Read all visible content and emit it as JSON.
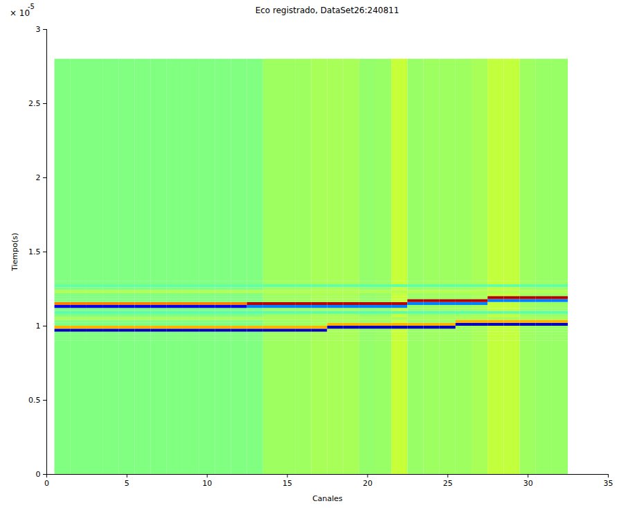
{
  "chart_data": {
    "type": "heatmap",
    "title": "Eco registrado, DataSet26:240811",
    "x_label": "Canales",
    "y_label": "Tiempo(s)",
    "y_multiplier": {
      "base": "× 10",
      "exponent": "-5"
    },
    "xlim": [
      0,
      35
    ],
    "xticks": [
      0,
      5,
      10,
      15,
      20,
      25,
      30,
      35
    ],
    "ylim": [
      0,
      3
    ],
    "yticks": [
      0,
      0.5,
      1,
      1.5,
      2,
      2.5,
      3
    ],
    "grid": false,
    "color_range": [
      -1,
      1
    ],
    "x": [
      1,
      2,
      3,
      4,
      5,
      6,
      7,
      8,
      9,
      10,
      11,
      12,
      13,
      14,
      15,
      16,
      17,
      18,
      19,
      20,
      21,
      22,
      23,
      24,
      25,
      26,
      27,
      28,
      29,
      30,
      31,
      32
    ],
    "y_edges": [
      0,
      0.9,
      0.92,
      0.94,
      0.96,
      0.98,
      1.0,
      1.02,
      1.04,
      1.06,
      1.08,
      1.1,
      1.12,
      1.14,
      1.16,
      1.18,
      1.2,
      1.22,
      1.24,
      1.26,
      1.28,
      1.3,
      2.8
    ],
    "cells": [
      [
        0,
        0,
        0,
        0,
        -0.9,
        0.4,
        0,
        0,
        0.08,
        0,
        -0.08,
        0,
        -0.8,
        0.5,
        0,
        0,
        0,
        0.1,
        0,
        -0.06,
        0,
        0
      ],
      [
        0,
        0,
        0,
        0,
        -0.9,
        0.4,
        0,
        0,
        0.08,
        0,
        -0.08,
        0,
        -0.8,
        0.5,
        0,
        0,
        0,
        0.1,
        0,
        -0.06,
        0,
        0
      ],
      [
        0,
        0,
        0,
        0,
        -0.9,
        0.4,
        0,
        0,
        0.08,
        0,
        -0.08,
        0,
        -0.8,
        0.5,
        0,
        0,
        0,
        0.1,
        0,
        -0.06,
        0,
        0
      ],
      [
        0,
        0,
        0,
        0,
        -0.9,
        0.4,
        0,
        0,
        0.08,
        0,
        -0.08,
        0,
        -0.8,
        0.5,
        0,
        0,
        0,
        0.1,
        0,
        -0.06,
        0,
        0
      ],
      [
        0,
        0,
        0,
        0,
        -0.9,
        0.4,
        0,
        0,
        0.08,
        0,
        -0.08,
        0,
        -0.8,
        0.5,
        0,
        0,
        0,
        0.1,
        0,
        -0.06,
        0,
        0
      ],
      [
        0,
        0,
        0,
        0,
        -0.9,
        0.4,
        0,
        0,
        0.08,
        0,
        -0.08,
        0,
        -0.8,
        0.5,
        0,
        0,
        0,
        0.1,
        0,
        -0.06,
        0,
        0
      ],
      [
        0,
        0,
        0,
        0,
        -0.9,
        0.4,
        0,
        0,
        0.08,
        0,
        -0.08,
        0,
        -0.8,
        0.5,
        0,
        0,
        0,
        0.1,
        0,
        -0.06,
        0,
        0
      ],
      [
        0,
        0,
        0,
        0,
        -0.9,
        0.4,
        0,
        0,
        0.08,
        0,
        -0.08,
        0,
        -0.8,
        0.5,
        0,
        0,
        0,
        0.1,
        0,
        -0.06,
        0,
        0
      ],
      [
        0,
        0,
        0,
        0,
        -0.9,
        0.4,
        0,
        0,
        0.08,
        0,
        -0.08,
        0,
        -0.8,
        0.5,
        0,
        0,
        0,
        0.1,
        0,
        -0.06,
        0,
        0
      ],
      [
        0,
        0,
        0,
        0,
        -0.9,
        0.4,
        0,
        0,
        0.08,
        0,
        -0.08,
        0,
        -0.8,
        0.5,
        0,
        0,
        0,
        0.1,
        0,
        -0.06,
        0,
        0
      ],
      [
        0,
        0,
        0,
        0,
        -0.9,
        0.4,
        0,
        0,
        0.08,
        0,
        -0.08,
        0,
        -0.8,
        0.5,
        0,
        0,
        0,
        0.1,
        0,
        -0.06,
        0,
        0
      ],
      [
        0,
        0,
        0,
        0,
        -0.9,
        0.4,
        0,
        0,
        0.08,
        0,
        -0.08,
        0,
        -0.8,
        0.5,
        0,
        0,
        0,
        0.1,
        0,
        -0.06,
        0,
        0
      ],
      [
        0,
        0,
        0,
        0,
        -0.9,
        0.4,
        0,
        0,
        0.08,
        0,
        -0.08,
        0,
        -0.5,
        0.9,
        0,
        0,
        0,
        0.1,
        0,
        -0.06,
        0,
        0
      ],
      [
        0.06,
        0.06,
        0.06,
        0.06,
        -0.9,
        0.4,
        0.06,
        0.06,
        0.08,
        0.06,
        -0.08,
        0.06,
        -0.5,
        0.9,
        0.06,
        0.06,
        0.06,
        0.1,
        0.06,
        -0.06,
        0.06,
        0.06
      ],
      [
        0.06,
        0.06,
        0.06,
        0.06,
        -0.9,
        0.4,
        0.06,
        0.06,
        0.08,
        0.06,
        -0.08,
        0.06,
        -0.5,
        0.9,
        0.06,
        0.06,
        0.06,
        0.1,
        0.06,
        -0.06,
        0.06,
        0.06
      ],
      [
        0.06,
        0.06,
        0.06,
        0.06,
        -0.9,
        0.4,
        0.06,
        0.06,
        0.08,
        0.06,
        -0.08,
        0.06,
        -0.5,
        0.9,
        0.06,
        0.06,
        0.06,
        0.1,
        0.06,
        -0.06,
        0.06,
        0.06
      ],
      [
        0.08,
        0.08,
        0.08,
        0.08,
        -0.9,
        0.4,
        0.08,
        0.08,
        0.08,
        0.08,
        -0.08,
        0.08,
        -0.5,
        0.9,
        0.08,
        0.08,
        0.08,
        0.1,
        0.08,
        -0.06,
        0.08,
        0.08
      ],
      [
        0.08,
        0.08,
        0.08,
        0.08,
        0.08,
        -0.9,
        0.4,
        0.08,
        0.08,
        0.08,
        -0.08,
        0.08,
        -0.5,
        0.9,
        0.08,
        0.08,
        0.08,
        0.1,
        0.08,
        -0.06,
        0.08,
        0.08
      ],
      [
        0.08,
        0.08,
        0.08,
        0.08,
        0.08,
        -0.9,
        0.4,
        0.08,
        0.08,
        0.08,
        -0.08,
        0.08,
        -0.5,
        0.9,
        0.08,
        0.08,
        0.08,
        0.1,
        0.08,
        -0.06,
        0.08,
        0.08
      ],
      [
        0.04,
        0.04,
        0.04,
        0.04,
        0.04,
        -0.9,
        0.4,
        0.04,
        0.08,
        0.04,
        -0.08,
        0.04,
        -0.5,
        0.9,
        0.04,
        0.04,
        0.04,
        0.1,
        0.04,
        -0.06,
        0.04,
        0.04
      ],
      [
        0.05,
        0.05,
        0.05,
        0.05,
        0.05,
        -0.9,
        0.4,
        0.05,
        0.08,
        0.05,
        -0.08,
        0.05,
        -0.5,
        0.9,
        0.05,
        0.05,
        0.05,
        0.1,
        0.05,
        -0.06,
        0.05,
        0.05
      ],
      [
        0.14,
        0.14,
        0.14,
        0.14,
        0.14,
        -0.9,
        0.4,
        0.14,
        0.08,
        0.14,
        -0.08,
        0.14,
        -0.5,
        0.9,
        0.14,
        0.14,
        0.14,
        0.1,
        0.14,
        -0.06,
        0.14,
        0.14
      ],
      [
        0.05,
        0.05,
        0.05,
        0.05,
        0.05,
        -0.9,
        0.4,
        0.05,
        0.08,
        0.05,
        -0.08,
        0.05,
        0.05,
        -0.5,
        0.9,
        0.05,
        0.05,
        0.1,
        0.05,
        -0.06,
        0.05,
        0.05
      ],
      [
        0.06,
        0.06,
        0.06,
        0.06,
        0.06,
        -0.9,
        0.4,
        0.06,
        0.08,
        0.06,
        -0.08,
        0.06,
        0.06,
        -0.5,
        0.9,
        0.06,
        0.06,
        0.1,
        0.06,
        -0.06,
        0.06,
        0.06
      ],
      [
        0.06,
        0.06,
        0.06,
        0.06,
        0.06,
        -0.9,
        0.4,
        0.06,
        0.08,
        0.06,
        -0.08,
        0.06,
        0.06,
        -0.5,
        0.9,
        0.06,
        0.06,
        0.1,
        0.06,
        -0.06,
        0.06,
        0.06
      ],
      [
        0.06,
        0.06,
        0.06,
        0.06,
        0.06,
        0.06,
        -0.9,
        0.4,
        0.08,
        0.06,
        -0.08,
        0.06,
        0.06,
        -0.5,
        0.9,
        0.06,
        0.06,
        0.1,
        0.06,
        -0.06,
        0.06,
        0.06
      ],
      [
        0.08,
        0.08,
        0.08,
        0.08,
        0.08,
        0.08,
        -0.9,
        0.4,
        0.08,
        0.08,
        -0.08,
        0.08,
        0.08,
        -0.5,
        0.9,
        0.08,
        0.08,
        0.1,
        0.08,
        -0.06,
        0.08,
        0.08
      ],
      [
        0.13,
        0.13,
        0.13,
        0.13,
        0.13,
        0.13,
        -0.9,
        0.4,
        0.08,
        0.13,
        -0.08,
        0.13,
        0.13,
        0.13,
        -0.5,
        0.9,
        0.13,
        0.1,
        0.13,
        -0.06,
        0.13,
        0.13
      ],
      [
        0.13,
        0.13,
        0.13,
        0.13,
        0.13,
        0.13,
        -0.9,
        0.4,
        0.08,
        0.13,
        -0.08,
        0.13,
        0.13,
        0.13,
        -0.5,
        0.9,
        0.13,
        0.1,
        0.13,
        -0.06,
        0.13,
        0.13
      ],
      [
        0.06,
        0.06,
        0.06,
        0.06,
        0.06,
        0.06,
        -0.9,
        0.4,
        0.08,
        0.06,
        -0.08,
        0.06,
        0.06,
        0.06,
        -0.5,
        0.9,
        0.06,
        0.1,
        0.06,
        -0.06,
        0.06,
        0.06
      ],
      [
        0.05,
        0.05,
        0.05,
        0.05,
        0.05,
        0.05,
        -0.9,
        0.4,
        0.08,
        0.05,
        -0.08,
        0.05,
        0.05,
        0.05,
        -0.5,
        0.9,
        0.05,
        0.1,
        0.05,
        -0.06,
        0.05,
        0.05
      ],
      [
        0.05,
        0.05,
        0.05,
        0.05,
        0.05,
        0.05,
        -0.9,
        0.4,
        0.08,
        0.05,
        -0.08,
        0.05,
        0.05,
        0.05,
        -0.5,
        0.9,
        0.05,
        0.1,
        0.05,
        -0.06,
        0.05,
        0.05
      ]
    ]
  }
}
